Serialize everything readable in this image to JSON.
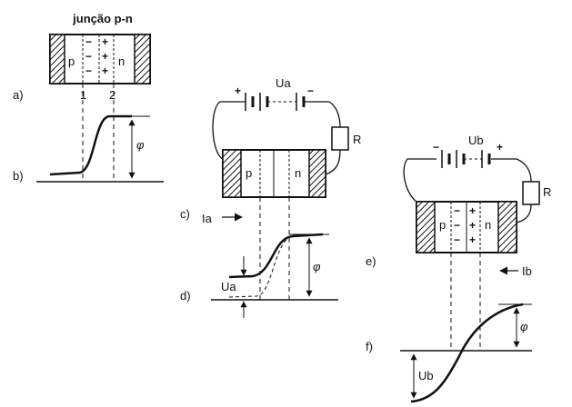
{
  "title": "junção p-n",
  "panel_labels": {
    "a": "a)",
    "b": "b)",
    "c": "c)",
    "d": "d)",
    "e": "e)",
    "f": "f)"
  },
  "region_labels": {
    "p": "p",
    "n": "n"
  },
  "boundary_labels": {
    "one": "1",
    "two": "2"
  },
  "symbols": {
    "phi": "φ",
    "resistor": "R",
    "voltage_a": "Ua",
    "voltage_b": "Ub",
    "current_a": "Ia",
    "current_b": "Ib",
    "plus": "+",
    "minus": "−"
  }
}
